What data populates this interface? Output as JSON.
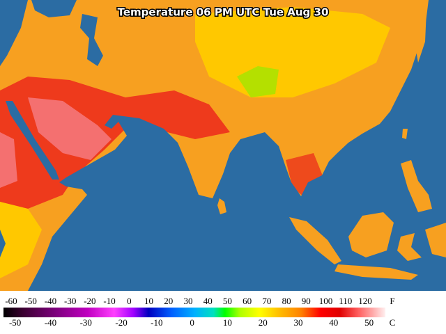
{
  "title": "Temperature 06 PM UTC Tue Aug 30",
  "legend": {
    "fahrenheit": {
      "unit": "F",
      "ticks": [
        -60,
        -50,
        -40,
        -30,
        -20,
        -10,
        0,
        10,
        20,
        30,
        40,
        50,
        60,
        70,
        80,
        90,
        100,
        110,
        120
      ]
    },
    "celsius": {
      "unit": "C",
      "ticks": [
        -50,
        -40,
        -30,
        -20,
        -10,
        0,
        10,
        20,
        30,
        40,
        50
      ]
    }
  }
}
